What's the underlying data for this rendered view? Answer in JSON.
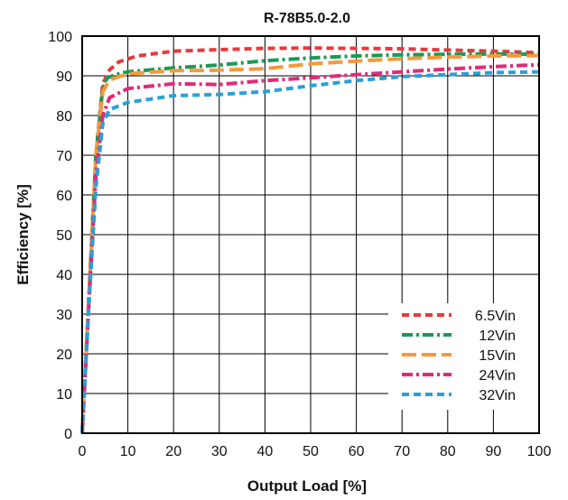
{
  "chart_data": {
    "type": "line",
    "title": "R-78B5.0-2.0",
    "xlabel": "Output Load [%]",
    "ylabel": "Efficiency [%]",
    "xlim": [
      0,
      100
    ],
    "ylim": [
      0,
      100
    ],
    "xticks": [
      0,
      10,
      20,
      30,
      40,
      50,
      60,
      70,
      80,
      90,
      100
    ],
    "yticks": [
      0,
      10,
      20,
      30,
      40,
      50,
      60,
      70,
      80,
      90,
      100
    ],
    "grid": true,
    "legend_position": "bottom-right",
    "series": [
      {
        "name": "6.5Vin",
        "color": "#e8393c",
        "dash": "dashed",
        "points": [
          [
            0,
            0
          ],
          [
            1.5,
            35
          ],
          [
            3,
            70
          ],
          [
            4.5,
            88
          ],
          [
            6,
            91.5
          ],
          [
            8,
            93.5
          ],
          [
            12,
            95
          ],
          [
            20,
            96.2
          ],
          [
            30,
            96.6
          ],
          [
            40,
            96.9
          ],
          [
            50,
            97
          ],
          [
            60,
            96.9
          ],
          [
            70,
            96.8
          ],
          [
            80,
            96.5
          ],
          [
            90,
            96.2
          ],
          [
            100,
            95.8
          ]
        ]
      },
      {
        "name": "12Vin",
        "color": "#1a9a55",
        "dash": "dashdot",
        "points": [
          [
            0,
            0
          ],
          [
            1.5,
            35
          ],
          [
            3,
            70
          ],
          [
            4.5,
            87
          ],
          [
            5.5,
            89.5
          ],
          [
            8,
            90.5
          ],
          [
            10,
            91
          ],
          [
            20,
            92
          ],
          [
            30,
            92.7
          ],
          [
            40,
            93.8
          ],
          [
            50,
            94.5
          ],
          [
            60,
            95
          ],
          [
            70,
            95.3
          ],
          [
            80,
            95.4
          ],
          [
            90,
            95.5
          ],
          [
            100,
            95.4
          ]
        ]
      },
      {
        "name": "15Vin",
        "color": "#f5993c",
        "dash": "longdash",
        "points": [
          [
            0,
            0
          ],
          [
            1.5,
            35
          ],
          [
            3,
            70
          ],
          [
            4.5,
            86
          ],
          [
            6,
            89
          ],
          [
            10,
            90.5
          ],
          [
            20,
            91.3
          ],
          [
            30,
            91.4
          ],
          [
            40,
            91.8
          ],
          [
            50,
            93
          ],
          [
            60,
            93.7
          ],
          [
            70,
            94.3
          ],
          [
            80,
            94.7
          ],
          [
            90,
            95
          ],
          [
            100,
            95.1
          ]
        ]
      },
      {
        "name": "24Vin",
        "color": "#e02a7a",
        "dash": "dashdot",
        "points": [
          [
            0,
            0
          ],
          [
            1.5,
            33
          ],
          [
            3,
            65
          ],
          [
            4.5,
            80
          ],
          [
            6,
            84.5
          ],
          [
            10,
            86.8
          ],
          [
            20,
            88
          ],
          [
            30,
            87.8
          ],
          [
            40,
            88.8
          ],
          [
            50,
            89.5
          ],
          [
            60,
            90.3
          ],
          [
            70,
            91
          ],
          [
            80,
            91.7
          ],
          [
            90,
            92.3
          ],
          [
            100,
            92.8
          ]
        ]
      },
      {
        "name": "32Vin",
        "color": "#2aa0d8",
        "dash": "dashed",
        "points": [
          [
            0,
            0
          ],
          [
            1.5,
            33
          ],
          [
            3,
            62
          ],
          [
            4.5,
            78
          ],
          [
            6,
            81.5
          ],
          [
            10,
            83.3
          ],
          [
            20,
            85
          ],
          [
            30,
            85.3
          ],
          [
            40,
            86
          ],
          [
            50,
            87.5
          ],
          [
            60,
            88.8
          ],
          [
            70,
            89.8
          ],
          [
            80,
            90.3
          ],
          [
            90,
            90.8
          ],
          [
            100,
            91
          ]
        ]
      }
    ]
  }
}
